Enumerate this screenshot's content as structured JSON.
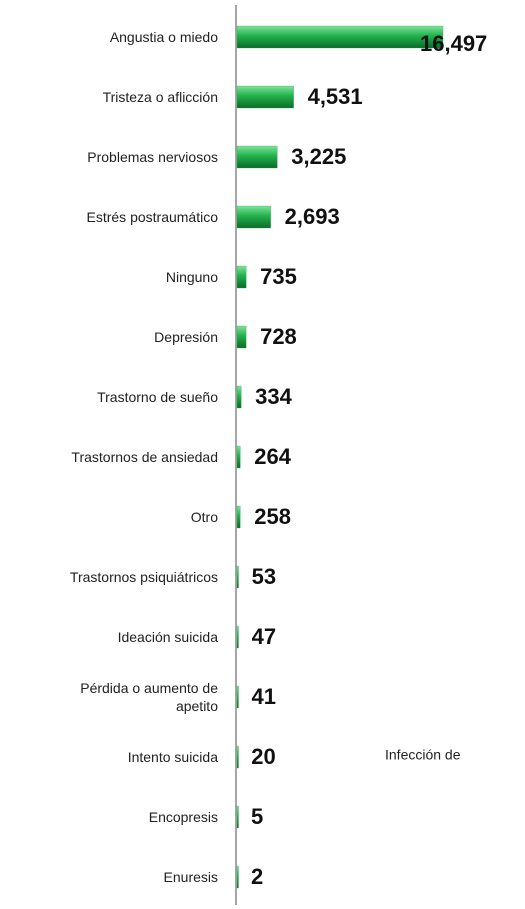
{
  "chart_data": {
    "type": "bar",
    "orientation": "horizontal",
    "categories": [
      "Angustia o miedo",
      "Tristeza o aflicción",
      "Problemas nerviosos",
      "Estrés postraumático",
      "Ninguno",
      "Depresión",
      "Trastorno de sueño",
      "Trastornos de ansiedad",
      "Otro",
      "Trastornos psiquiátricos",
      "Ideación suicida",
      "Pérdida o aumento de apetito",
      "Intento suicida",
      "Encopresis",
      "Enuresis"
    ],
    "values": [
      16497,
      4531,
      3225,
      2693,
      735,
      728,
      334,
      264,
      258,
      53,
      47,
      41,
      20,
      5,
      2
    ],
    "value_labels": [
      "16,497",
      "4,531",
      "3,225",
      "2,693",
      "735",
      "728",
      "334",
      "264",
      "258",
      "53",
      "47",
      "41",
      "20",
      "5",
      "2"
    ],
    "color": "#22a845",
    "xlim": [
      0,
      16497
    ],
    "annotation": "Infección de"
  }
}
